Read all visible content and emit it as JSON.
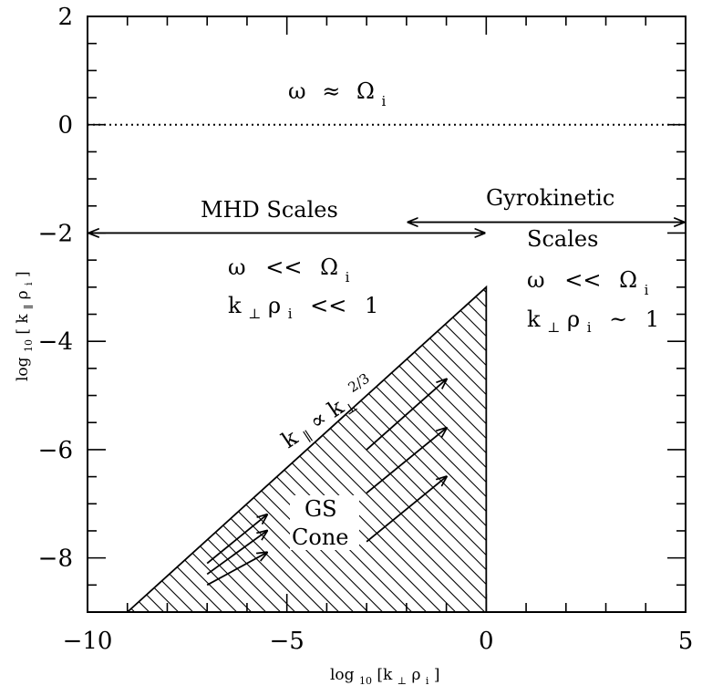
{
  "chart_data": {
    "type": "diagram",
    "xlim": [
      -10,
      5
    ],
    "ylim": [
      -9,
      2
    ],
    "x_ticks": [
      {
        "value": -10,
        "label": "−10"
      },
      {
        "value": -5,
        "label": "−5"
      },
      {
        "value": 0,
        "label": "0"
      },
      {
        "value": 5,
        "label": "5"
      }
    ],
    "y_ticks": [
      {
        "value": 2,
        "label": "2"
      },
      {
        "value": 0,
        "label": "0"
      },
      {
        "value": -2,
        "label": "−2"
      },
      {
        "value": -4,
        "label": "−4"
      },
      {
        "value": -6,
        "label": "−6"
      },
      {
        "value": -8,
        "label": "−8"
      }
    ],
    "x_minor_step": 1,
    "y_minor_step": 0.5,
    "xlabel": {
      "pre": "log",
      "sub1": "10",
      "mid": "[k",
      "sub2": "⊥",
      "sep": " ρ",
      "sub3": "i",
      "post": "]"
    },
    "ylabel": {
      "pre": "log",
      "sub1": "10",
      "mid": "[ k",
      "sub2": "∥",
      "sep": " ρ",
      "sub3": "i",
      "post": "]"
    },
    "dotted_line": {
      "y": 0
    },
    "cone": {
      "vertices": [
        [
          -9,
          -9
        ],
        [
          0,
          -3
        ],
        [
          0,
          -9
        ]
      ],
      "boundary_label": {
        "main": "k",
        "sub": "∥",
        "rel": "∝",
        "main2": "k",
        "sub2": "⊥",
        "sup": "2/3"
      }
    },
    "scale_arrows": [
      {
        "x_start": -10,
        "x_end": 0,
        "y": -2
      },
      {
        "x_start": -2,
        "x_end": 5,
        "y": -1.8
      }
    ],
    "flow_arrows": [
      {
        "start": [
          -3,
          -6
        ],
        "end": [
          -1,
          -4.7
        ]
      },
      {
        "start": [
          -3,
          -6.8
        ],
        "end": [
          -1,
          -5.6
        ]
      },
      {
        "start": [
          -3,
          -7.7
        ],
        "end": [
          -1,
          -6.5
        ]
      },
      {
        "start": [
          -7,
          -8.1
        ],
        "end": [
          -5.5,
          -7.2
        ]
      },
      {
        "start": [
          -7,
          -8.3
        ],
        "end": [
          -5.5,
          -7.5
        ]
      },
      {
        "start": [
          -7,
          -8.5
        ],
        "end": [
          -5.5,
          -7.9
        ]
      }
    ]
  },
  "annotations": {
    "top": {
      "omega": "ω",
      "rel": "≈",
      "Omega": "Ω",
      "sub": "i"
    },
    "mhd_title": "MHD Scales",
    "mhd_freq": {
      "omega": "ω",
      "rel": "<<",
      "Omega": "Ω",
      "sub": "i"
    },
    "mhd_k": {
      "k": "k",
      "ksub": "⊥",
      "rho": "ρ",
      "rhosub": "i",
      "rel": "<<",
      "val": "1"
    },
    "gk_title_1": "Gyrokinetic",
    "gk_title_2": "Scales",
    "gk_freq": {
      "omega": "ω",
      "rel": "<<",
      "Omega": "Ω",
      "sub": "i"
    },
    "gk_k": {
      "k": "k",
      "ksub": "⊥",
      "rho": "ρ",
      "rhosub": "i",
      "rel": "~",
      "val": "1"
    },
    "cone_label_1": "GS",
    "cone_label_2": "Cone"
  }
}
